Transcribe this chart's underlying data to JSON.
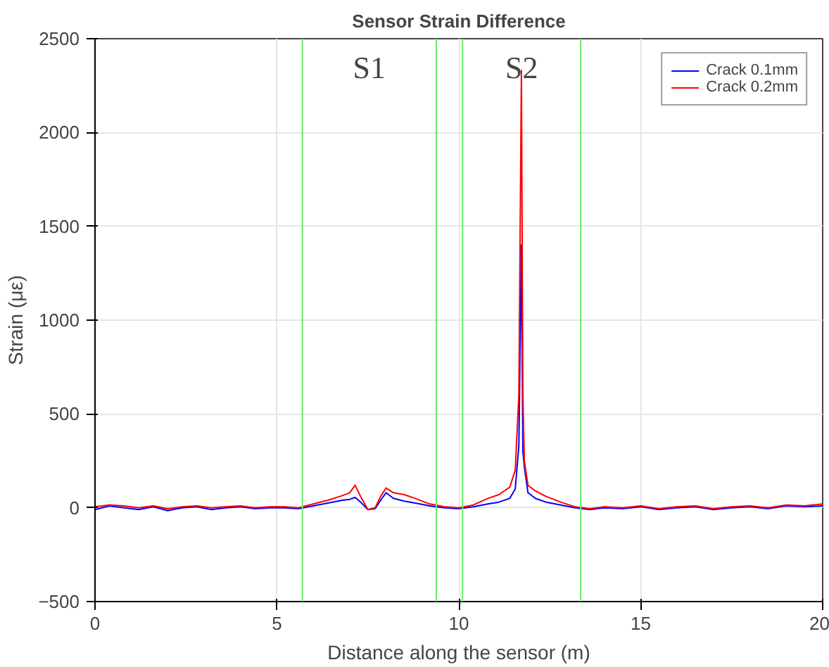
{
  "chart_data": {
    "type": "line",
    "title": "Sensor Strain Difference",
    "xlabel": "Distance along the sensor (m)",
    "ylabel": "Strain (με)",
    "xlim": [
      0,
      20
    ],
    "ylim": [
      -500,
      2500
    ],
    "xticks": [
      0,
      5,
      10,
      15,
      20
    ],
    "yticks": [
      -500,
      0,
      500,
      1000,
      1500,
      2000,
      2500
    ],
    "grid": true,
    "legend": "top right",
    "x": [
      0,
      0.4,
      0.8,
      1.2,
      1.6,
      2.0,
      2.4,
      2.8,
      3.2,
      3.6,
      4.0,
      4.4,
      4.8,
      5.2,
      5.6,
      6.0,
      6.4,
      6.8,
      7.0,
      7.15,
      7.3,
      7.5,
      7.7,
      7.85,
      8.0,
      8.2,
      8.5,
      8.8,
      9.2,
      9.6,
      10.0,
      10.4,
      10.8,
      11.1,
      11.4,
      11.55,
      11.65,
      11.72,
      11.76,
      11.8,
      11.9,
      12.1,
      12.4,
      12.8,
      13.2,
      13.6,
      14.0,
      14.5,
      15.0,
      15.5,
      16.0,
      16.5,
      17.0,
      17.5,
      18.0,
      18.5,
      19.0,
      19.5,
      20.0
    ],
    "series": [
      {
        "name": "Crack 0.1mm",
        "color": "#0000ff",
        "values": [
          -10,
          10,
          0,
          -10,
          5,
          -15,
          0,
          5,
          -10,
          0,
          5,
          -5,
          0,
          0,
          -5,
          10,
          25,
          40,
          45,
          55,
          30,
          -10,
          -5,
          40,
          80,
          50,
          35,
          25,
          10,
          0,
          -5,
          5,
          20,
          30,
          50,
          100,
          330,
          1400,
          300,
          220,
          80,
          50,
          30,
          15,
          0,
          -10,
          0,
          -5,
          5,
          -10,
          0,
          5,
          -10,
          0,
          5,
          -5,
          10,
          5,
          10
        ]
      },
      {
        "name": "Crack 0.2mm",
        "color": "#ff0000",
        "values": [
          5,
          15,
          10,
          0,
          10,
          -5,
          5,
          10,
          0,
          5,
          10,
          0,
          5,
          5,
          0,
          20,
          40,
          65,
          80,
          120,
          60,
          -10,
          0,
          60,
          105,
          80,
          70,
          50,
          20,
          5,
          0,
          15,
          50,
          70,
          110,
          200,
          600,
          2330,
          600,
          250,
          120,
          90,
          60,
          30,
          5,
          -5,
          5,
          0,
          10,
          -5,
          5,
          10,
          -5,
          5,
          10,
          0,
          15,
          10,
          20
        ]
      }
    ],
    "ref_lines": [
      {
        "axis": "x",
        "value": 5.7,
        "color": "#66ee66"
      },
      {
        "axis": "x",
        "value": 9.38,
        "color": "#66ee66"
      },
      {
        "axis": "x",
        "value": 10.1,
        "color": "#66ee66"
      },
      {
        "axis": "x",
        "value": 13.35,
        "color": "#66ee66"
      }
    ],
    "annotations": [
      "S1",
      "S2"
    ]
  }
}
